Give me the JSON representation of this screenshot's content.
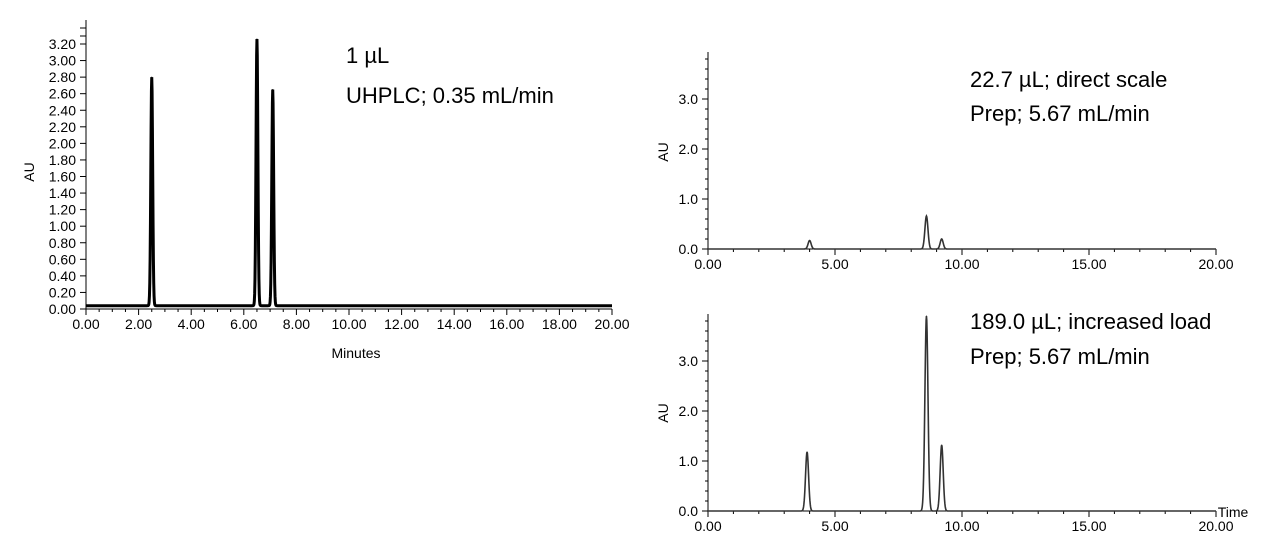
{
  "chart_data": [
    {
      "type": "line",
      "annotation": [
        "1 µL",
        "UHPLC; 0.35 mL/min"
      ],
      "xlabel": "Minutes",
      "ylabel": "AU",
      "xlim": [
        0,
        20
      ],
      "ylim": [
        0,
        3.2
      ],
      "xticks": [
        "0.00",
        "2.00",
        "4.00",
        "6.00",
        "8.00",
        "10.00",
        "12.00",
        "14.00",
        "16.00",
        "18.00",
        "20.00"
      ],
      "yticks": [
        "0.00",
        "0.20",
        "0.40",
        "0.60",
        "0.80",
        "1.00",
        "1.20",
        "1.40",
        "1.60",
        "1.80",
        "2.00",
        "2.20",
        "2.40",
        "2.60",
        "2.80",
        "3.00",
        "3.20"
      ],
      "peaks": [
        {
          "x": 2.5,
          "y": 2.8
        },
        {
          "x": 6.5,
          "y": 3.26
        },
        {
          "x": 7.1,
          "y": 2.65
        }
      ],
      "baseline": 0.04,
      "color": "#000000"
    },
    {
      "type": "line",
      "annotation": [
        "22.7 µL; direct scale",
        "Prep; 5.67 mL/min"
      ],
      "xlabel": "",
      "ylabel": "AU",
      "xlim": [
        0,
        20
      ],
      "ylim": [
        0,
        3.9
      ],
      "xticks": [
        "0.00",
        "5.00",
        "10.00",
        "15.00",
        "20.00"
      ],
      "yticks": [
        "0.0",
        "1.0",
        "2.0",
        "3.0"
      ],
      "peaks": [
        {
          "x": 4.0,
          "y": 0.17
        },
        {
          "x": 8.6,
          "y": 0.66
        },
        {
          "x": 9.2,
          "y": 0.2
        }
      ],
      "baseline": 0.0,
      "color": "#333333"
    },
    {
      "type": "line",
      "annotation": [
        "189.0 µL; increased load",
        "Prep; 5.67 mL/min"
      ],
      "xlabel": "Time",
      "ylabel": "AU",
      "xlim": [
        0,
        20
      ],
      "ylim": [
        0,
        3.9
      ],
      "xticks": [
        "0.00",
        "5.00",
        "10.00",
        "15.00",
        "20.00"
      ],
      "yticks": [
        "0.0",
        "1.0",
        "2.0",
        "3.0"
      ],
      "peaks": [
        {
          "x": 3.9,
          "y": 1.18
        },
        {
          "x": 8.6,
          "y": 3.9
        },
        {
          "x": 9.2,
          "y": 1.32
        }
      ],
      "baseline": 0.0,
      "color": "#333333"
    }
  ]
}
